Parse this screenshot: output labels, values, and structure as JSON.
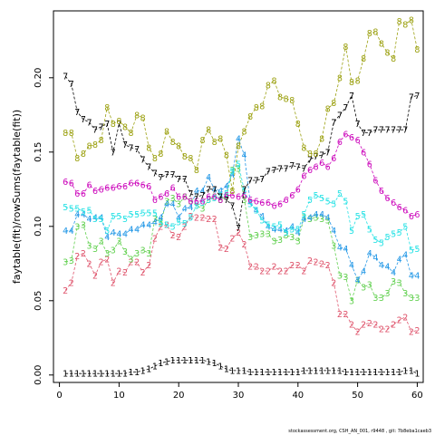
{
  "chart_data": {
    "type": "line",
    "title": "",
    "xlabel": "",
    "ylabel": "faytable(fit)/rowSums(faytable(fit))",
    "xlim": [
      -1,
      61
    ],
    "ylim": [
      -0.005,
      0.245
    ],
    "xticks": [
      0,
      10,
      20,
      30,
      40,
      50,
      60
    ],
    "yticks": [
      0.0,
      0.05,
      0.1,
      0.15,
      0.2
    ],
    "ytick_labels": [
      "0.00",
      "0.05",
      "0.10",
      "0.15",
      "0.20"
    ],
    "grid": false,
    "footer": "stockassessment.org, CSH_AN_001, r9448 , git: 7b8eba1caeb3",
    "series": [
      {
        "symbol": "1",
        "color": "#000000",
        "values": [
          0.001,
          0.001,
          0.001,
          0.001,
          0.001,
          0.001,
          0.001,
          0.001,
          0.001,
          0.001,
          0.001,
          0.002,
          0.002,
          0.003,
          0.004,
          0.006,
          0.008,
          0.009,
          0.01,
          0.01,
          0.01,
          0.01,
          0.01,
          0.01,
          0.009,
          0.008,
          0.006,
          0.004,
          0.003,
          0.003,
          0.003,
          0.002,
          0.002,
          0.002,
          0.002,
          0.002,
          0.002,
          0.002,
          0.002,
          0.002,
          0.003,
          0.003,
          0.003,
          0.003,
          0.003,
          0.003,
          0.003,
          0.002,
          0.002,
          0.002,
          0.002,
          0.002,
          0.002,
          0.002,
          0.002,
          0.002,
          0.002,
          0.003,
          0.003,
          0.001
        ]
      },
      {
        "symbol": "2",
        "color": "#DF536B",
        "values": [
          0.057,
          0.062,
          0.08,
          0.082,
          0.075,
          0.067,
          0.076,
          0.078,
          0.062,
          0.07,
          0.069,
          0.076,
          0.076,
          0.069,
          0.074,
          0.092,
          0.1,
          0.101,
          0.094,
          0.093,
          0.1,
          0.107,
          0.106,
          0.106,
          0.105,
          0.105,
          0.086,
          0.085,
          0.092,
          0.096,
          0.088,
          0.073,
          0.073,
          0.07,
          0.07,
          0.073,
          0.07,
          0.07,
          0.074,
          0.074,
          0.07,
          0.077,
          0.076,
          0.075,
          0.074,
          0.062,
          0.041,
          0.041,
          0.034,
          0.029,
          0.034,
          0.035,
          0.034,
          0.031,
          0.031,
          0.034,
          0.037,
          0.039,
          0.029,
          0.03
        ]
      },
      {
        "symbol": "3",
        "color": "#61D04F",
        "values": [
          0.076,
          0.077,
          0.1,
          0.101,
          0.087,
          0.085,
          0.09,
          0.082,
          0.084,
          0.09,
          0.083,
          0.078,
          0.082,
          0.084,
          0.082,
          0.105,
          0.103,
          0.117,
          0.119,
          0.115,
          0.12,
          0.117,
          0.114,
          0.112,
          0.118,
          0.12,
          0.118,
          0.12,
          0.138,
          0.139,
          0.118,
          0.093,
          0.094,
          0.095,
          0.095,
          0.09,
          0.091,
          0.094,
          0.093,
          0.09,
          0.106,
          0.105,
          0.106,
          0.105,
          0.104,
          0.087,
          0.067,
          0.066,
          0.05,
          0.064,
          0.059,
          0.061,
          0.052,
          0.052,
          0.055,
          0.063,
          0.062,
          0.055,
          0.052,
          0.052
        ]
      },
      {
        "symbol": "4",
        "color": "#2297E6",
        "values": [
          0.097,
          0.097,
          0.108,
          0.108,
          0.105,
          0.106,
          0.106,
          0.093,
          0.096,
          0.095,
          0.095,
          0.098,
          0.098,
          0.101,
          0.101,
          0.103,
          0.106,
          0.115,
          0.115,
          0.106,
          0.112,
          0.113,
          0.124,
          0.124,
          0.133,
          0.125,
          0.124,
          0.127,
          0.135,
          0.159,
          0.148,
          0.116,
          0.111,
          0.107,
          0.1,
          0.098,
          0.098,
          0.097,
          0.1,
          0.096,
          0.105,
          0.106,
          0.108,
          0.108,
          0.106,
          0.097,
          0.086,
          0.085,
          0.074,
          0.064,
          0.07,
          0.082,
          0.079,
          0.074,
          0.073,
          0.069,
          0.078,
          0.081,
          0.067,
          0.067
        ]
      },
      {
        "symbol": "5",
        "color": "#28E2E5",
        "values": [
          0.113,
          0.112,
          0.112,
          0.11,
          0.111,
          0.105,
          0.105,
          0.097,
          0.107,
          0.107,
          0.105,
          0.108,
          0.108,
          0.109,
          0.109,
          0.109,
          0.102,
          0.101,
          0.1,
          0.103,
          0.102,
          0.106,
          0.114,
          0.116,
          0.118,
          0.119,
          0.121,
          0.122,
          0.137,
          0.142,
          0.124,
          0.115,
          0.111,
          0.104,
          0.101,
          0.1,
          0.101,
          0.096,
          0.098,
          0.098,
          0.108,
          0.118,
          0.121,
          0.119,
          0.117,
          0.115,
          0.122,
          0.117,
          0.097,
          0.107,
          0.108,
          0.098,
          0.091,
          0.089,
          0.093,
          0.095,
          0.096,
          0.1,
          0.084,
          0.085
        ]
      },
      {
        "symbol": "6",
        "color": "#CD0BBC",
        "values": [
          0.13,
          0.129,
          0.122,
          0.122,
          0.128,
          0.124,
          0.125,
          0.126,
          0.126,
          0.127,
          0.127,
          0.129,
          0.129,
          0.128,
          0.127,
          0.118,
          0.12,
          0.122,
          0.126,
          0.12,
          0.12,
          0.117,
          0.117,
          0.117,
          0.12,
          0.12,
          0.118,
          0.121,
          0.121,
          0.12,
          0.121,
          0.118,
          0.117,
          0.116,
          0.116,
          0.114,
          0.115,
          0.118,
          0.121,
          0.125,
          0.134,
          0.138,
          0.14,
          0.143,
          0.14,
          0.146,
          0.157,
          0.162,
          0.16,
          0.158,
          0.15,
          0.142,
          0.131,
          0.124,
          0.119,
          0.116,
          0.113,
          0.111,
          0.107,
          0.108
        ]
      },
      {
        "symbol": "7",
        "color": "#000000",
        "values": [
          0.201,
          0.196,
          0.177,
          0.172,
          0.17,
          0.165,
          0.167,
          0.169,
          0.15,
          0.169,
          0.155,
          0.153,
          0.152,
          0.145,
          0.14,
          0.136,
          0.133,
          0.135,
          0.135,
          0.132,
          0.132,
          0.122,
          0.12,
          0.121,
          0.125,
          0.125,
          0.12,
          0.118,
          0.114,
          0.099,
          0.125,
          0.131,
          0.131,
          0.132,
          0.137,
          0.138,
          0.139,
          0.139,
          0.141,
          0.14,
          0.139,
          0.145,
          0.147,
          0.148,
          0.15,
          0.17,
          0.175,
          0.18,
          0.188,
          0.169,
          0.163,
          0.163,
          0.165,
          0.165,
          0.165,
          0.165,
          0.165,
          0.165,
          0.187,
          0.188
        ]
      },
      {
        "symbol": "8",
        "color": "#9BA00F",
        "values": [
          0.163,
          0.163,
          0.146,
          0.149,
          0.154,
          0.155,
          0.158,
          0.18,
          0.169,
          0.171,
          0.167,
          0.163,
          0.175,
          0.173,
          0.153,
          0.146,
          0.149,
          0.164,
          0.157,
          0.154,
          0.147,
          0.146,
          0.138,
          0.158,
          0.165,
          0.157,
          0.159,
          0.148,
          0.124,
          0.154,
          0.164,
          0.174,
          0.18,
          0.181,
          0.195,
          0.198,
          0.187,
          0.186,
          0.185,
          0.169,
          0.153,
          0.149,
          0.149,
          0.159,
          0.179,
          0.183,
          0.2,
          0.221,
          0.197,
          0.198,
          0.213,
          0.23,
          0.231,
          0.223,
          0.217,
          0.213,
          0.238,
          0.236,
          0.239,
          0.219
        ]
      }
    ]
  }
}
